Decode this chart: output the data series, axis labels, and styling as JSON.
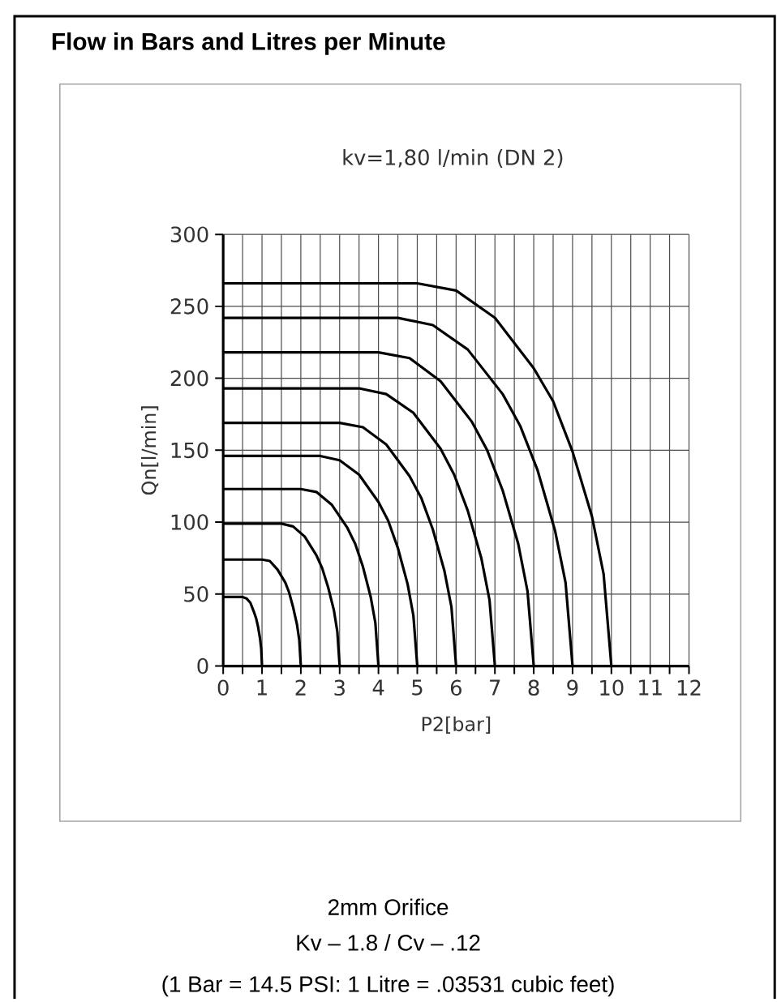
{
  "chart_data": {
    "type": "line",
    "title": "Flow in Bars and Litres per Minute",
    "subtitle": "kv=1,80 l/min (DN 2)",
    "xlabel": "P2[bar]",
    "ylabel": "Qn[l/min]",
    "annotations": [
      "2mm Orifice",
      "Kv – 1.8 / Cv – .12",
      "(1 Bar = 14.5 PSI: 1 Litre = .03531 cubic feet)"
    ],
    "xlim": [
      0,
      12
    ],
    "ylim": [
      0,
      300
    ],
    "xticks": [
      0,
      {
        "value": 0.5,
        "label": null
      },
      1,
      {
        "value": 1.5,
        "label": null
      },
      2,
      {
        "value": 2.5,
        "label": null
      },
      3,
      {
        "value": 3.5,
        "label": null
      },
      4,
      {
        "value": 4.5,
        "label": null
      },
      5,
      {
        "value": 5.5,
        "label": null
      },
      6,
      {
        "value": 6.5,
        "label": null
      },
      7,
      {
        "value": 7.5,
        "label": null
      },
      8,
      {
        "value": 8.5,
        "label": null
      },
      9,
      {
        "value": 9.5,
        "label": null
      },
      10,
      {
        "value": 10.5,
        "label": null
      },
      11,
      {
        "value": 11.5,
        "label": null
      },
      12
    ],
    "yticks": [
      0,
      50,
      100,
      150,
      200,
      250,
      300
    ],
    "grid": true,
    "series": [
      {
        "color": "#000000",
        "x": [
          0,
          0.5,
          0.6,
          0.7,
          0.8,
          0.85,
          0.9,
          0.95,
          0.98,
          1
        ],
        "values": [
          48,
          48,
          47,
          44,
          37,
          33,
          27,
          19,
          12,
          0
        ]
      },
      {
        "color": "#000000",
        "x": [
          0,
          1,
          1.2,
          1.4,
          1.6,
          1.7,
          1.8,
          1.9,
          1.96,
          2
        ],
        "values": [
          74,
          74,
          73,
          67,
          58,
          51,
          41,
          29,
          18,
          0
        ]
      },
      {
        "color": "#000000",
        "x": [
          0,
          1.5,
          1.8,
          2.1,
          2.4,
          2.55,
          2.7,
          2.85,
          2.94,
          3
        ],
        "values": [
          99,
          99,
          97,
          90,
          77,
          68,
          55,
          39,
          24,
          0
        ]
      },
      {
        "color": "#000000",
        "x": [
          0,
          2,
          2.4,
          2.8,
          3.2,
          3.4,
          3.6,
          3.8,
          3.92,
          4
        ],
        "values": [
          123,
          123,
          121,
          112,
          96,
          85,
          69,
          48,
          30,
          0
        ]
      },
      {
        "color": "#000000",
        "x": [
          0,
          2.5,
          3,
          3.5,
          4,
          4.25,
          4.5,
          4.75,
          4.9,
          5
        ],
        "values": [
          146,
          146,
          143,
          133,
          114,
          101,
          82,
          57,
          35,
          0
        ]
      },
      {
        "color": "#000000",
        "x": [
          0,
          3,
          3.6,
          4.2,
          4.8,
          5.1,
          5.4,
          5.7,
          5.88,
          6
        ],
        "values": [
          169,
          169,
          166,
          154,
          132,
          117,
          95,
          66,
          41,
          0
        ]
      },
      {
        "color": "#000000",
        "x": [
          0,
          3.5,
          4.2,
          4.9,
          5.6,
          5.95,
          6.3,
          6.65,
          6.86,
          7
        ],
        "values": [
          193,
          193,
          189,
          176,
          151,
          133,
          108,
          75,
          46,
          0
        ]
      },
      {
        "color": "#000000",
        "x": [
          0,
          4,
          4.8,
          5.6,
          6.4,
          6.8,
          7.2,
          7.6,
          7.84,
          8
        ],
        "values": [
          218,
          218,
          214,
          198,
          170,
          150,
          122,
          85,
          52,
          0
        ]
      },
      {
        "color": "#000000",
        "x": [
          0,
          4.5,
          5.4,
          6.3,
          7.2,
          7.65,
          8.1,
          8.55,
          8.82,
          9
        ],
        "values": [
          242,
          242,
          237,
          220,
          189,
          167,
          136,
          94,
          58,
          0
        ]
      },
      {
        "color": "#000000",
        "x": [
          0,
          5,
          6,
          7,
          8,
          8.5,
          9,
          9.5,
          9.8,
          10
        ],
        "values": [
          266,
          266,
          261,
          242,
          207,
          184,
          149,
          104,
          64,
          0
        ]
      }
    ]
  }
}
